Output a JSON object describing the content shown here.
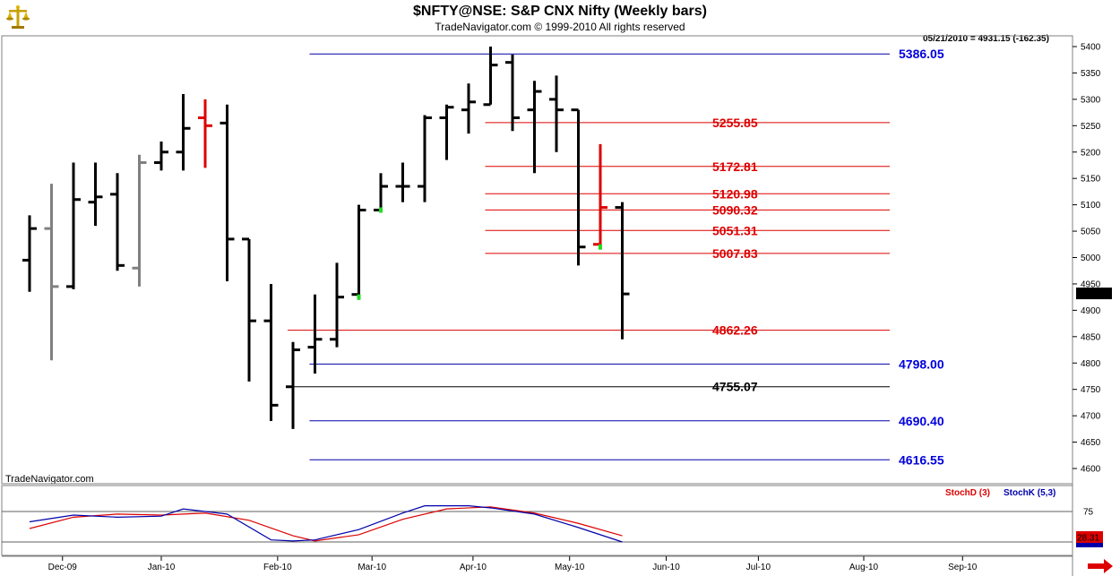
{
  "header": {
    "title": "$NFTY@NSE:  S&P CNX Nifty  (Weekly bars)",
    "subtitle": "TradeNavigator.com © 1999-2010 All rights reserved",
    "readout": "05/21/2010 = 4931.15 (-162.35)",
    "watermark": "TradeNavigator.com",
    "logo_icon": "gold-scales-logo-icon"
  },
  "chart_data": [
    {
      "type": "ohlc-bar",
      "ylim": [
        4580,
        5420
      ],
      "y_ticks": [
        4600,
        4650,
        4700,
        4750,
        4800,
        4850,
        4900,
        4950,
        5000,
        5050,
        5100,
        5150,
        5200,
        5250,
        5300,
        5350,
        5400
      ],
      "x_labels": [
        {
          "label": "Dec-09",
          "week": 1.5
        },
        {
          "label": "Jan-10",
          "week": 6
        },
        {
          "label": "Feb-10",
          "week": 11.3
        },
        {
          "label": "Mar-10",
          "week": 15.6
        },
        {
          "label": "Apr-10",
          "week": 20.2
        },
        {
          "label": "May-10",
          "week": 24.6
        },
        {
          "label": "Jun-10",
          "week": 29
        },
        {
          "label": "Jul-10",
          "week": 33.2
        },
        {
          "label": "Aug-10",
          "week": 38
        },
        {
          "label": "Sep-10",
          "week": 42.5
        }
      ],
      "last_price": "4931.15",
      "last_price_color": "#000000",
      "bars": [
        {
          "week": 0,
          "o": 4995,
          "h": 5080,
          "l": 4935,
          "c": 5055,
          "color": "#000000"
        },
        {
          "week": 1,
          "o": 5055,
          "h": 5140,
          "l": 4805,
          "c": 4945,
          "color": "#808080"
        },
        {
          "week": 2,
          "o": 4945,
          "h": 5180,
          "l": 4940,
          "c": 5110,
          "color": "#000000"
        },
        {
          "week": 3,
          "o": 5105,
          "h": 5180,
          "l": 5060,
          "c": 5115,
          "color": "#000000"
        },
        {
          "week": 4,
          "o": 5120,
          "h": 5160,
          "l": 4975,
          "c": 4985,
          "color": "#000000"
        },
        {
          "week": 5,
          "o": 4980,
          "h": 5195,
          "l": 4945,
          "c": 5180,
          "color": "#808080"
        },
        {
          "week": 6,
          "o": 5180,
          "h": 5220,
          "l": 5165,
          "c": 5200,
          "color": "#000000"
        },
        {
          "week": 7,
          "o": 5200,
          "h": 5310,
          "l": 5165,
          "c": 5245,
          "color": "#000000"
        },
        {
          "week": 8,
          "o": 5265,
          "h": 5300,
          "l": 5170,
          "c": 5250,
          "color": "#dd0000"
        },
        {
          "week": 9,
          "o": 5255,
          "h": 5290,
          "l": 4955,
          "c": 5035,
          "color": "#000000"
        },
        {
          "week": 10,
          "o": 5035,
          "h": 5035,
          "l": 4765,
          "c": 4880,
          "color": "#000000"
        },
        {
          "week": 11,
          "o": 4880,
          "h": 4950,
          "l": 4690,
          "c": 4720,
          "color": "#000000"
        },
        {
          "week": 12,
          "o": 4755,
          "h": 4840,
          "l": 4675,
          "c": 4825,
          "color": "#000000"
        },
        {
          "week": 13,
          "o": 4830,
          "h": 4930,
          "l": 4780,
          "c": 4845,
          "color": "#000000"
        },
        {
          "week": 14,
          "o": 4845,
          "h": 4990,
          "l": 4830,
          "c": 4925,
          "color": "#000000"
        },
        {
          "week": 15,
          "o": 4930,
          "h": 5100,
          "l": 4920,
          "c": 5090,
          "color": "#000000"
        },
        {
          "week": 16,
          "o": 5090,
          "h": 5160,
          "l": 5090,
          "c": 5135,
          "color": "#000000"
        },
        {
          "week": 17,
          "o": 5135,
          "h": 5180,
          "l": 5105,
          "c": 5135,
          "color": "#000000"
        },
        {
          "week": 18,
          "o": 5135,
          "h": 5270,
          "l": 5105,
          "c": 5265,
          "color": "#000000"
        },
        {
          "week": 19,
          "o": 5265,
          "h": 5290,
          "l": 5185,
          "c": 5285,
          "color": "#000000"
        },
        {
          "week": 20,
          "o": 5280,
          "h": 5330,
          "l": 5235,
          "c": 5295,
          "color": "#000000"
        },
        {
          "week": 21,
          "o": 5290,
          "h": 5400,
          "l": 5290,
          "c": 5365,
          "color": "#000000"
        },
        {
          "week": 22,
          "o": 5370,
          "h": 5385,
          "l": 5240,
          "c": 5265,
          "color": "#000000"
        },
        {
          "week": 23,
          "o": 5280,
          "h": 5335,
          "l": 5160,
          "c": 5315,
          "color": "#000000"
        },
        {
          "week": 24,
          "o": 5300,
          "h": 5345,
          "l": 5200,
          "c": 5280,
          "color": "#000000"
        },
        {
          "week": 25,
          "o": 5280,
          "h": 5280,
          "l": 4985,
          "c": 5020,
          "color": "#000000"
        },
        {
          "week": 26,
          "o": 5025,
          "h": 5215,
          "l": 5020,
          "c": 5095,
          "color": "#dd0000"
        },
        {
          "week": 27,
          "o": 5095,
          "h": 5105,
          "l": 4845,
          "c": 4931,
          "color": "#000000"
        }
      ],
      "green_marks": [
        {
          "week": 15,
          "y": 4925
        },
        {
          "week": 16,
          "y": 5090
        },
        {
          "week": 26,
          "y": 5020
        }
      ],
      "levels": [
        {
          "value": 5386.05,
          "label": "5386.05",
          "color": "#0000aa",
          "label_color": "#0000dd",
          "from_week": 13
        },
        {
          "value": 5255.85,
          "label": "5255.85",
          "color": "#dd0000",
          "label_color": "#dd0000",
          "from_week": 21
        },
        {
          "value": 5172.81,
          "label": "5172.81",
          "color": "#dd0000",
          "label_color": "#dd0000",
          "from_week": 21
        },
        {
          "value": 5120.98,
          "label": "5120.98",
          "color": "#dd0000",
          "label_color": "#dd0000",
          "from_week": 21
        },
        {
          "value": 5090.32,
          "label": "5090.32",
          "color": "#dd0000",
          "label_color": "#dd0000",
          "from_week": 21
        },
        {
          "value": 5051.31,
          "label": "5051.31",
          "color": "#dd0000",
          "label_color": "#dd0000",
          "from_week": 21
        },
        {
          "value": 5007.83,
          "label": "5007.83",
          "color": "#dd0000",
          "label_color": "#dd0000",
          "from_week": 21
        },
        {
          "value": 4862.26,
          "label": "4862.26",
          "color": "#dd0000",
          "label_color": "#dd0000",
          "from_week": 12
        },
        {
          "value": 4798.0,
          "label": "4798.00",
          "color": "#0000aa",
          "label_color": "#0000dd",
          "from_week": 13
        },
        {
          "value": 4755.07,
          "label": "4755.07",
          "color": "#000000",
          "label_color": "#000000",
          "from_week": 12
        },
        {
          "value": 4690.4,
          "label": "4690.40",
          "color": "#0000aa",
          "label_color": "#0000dd",
          "from_week": 13
        },
        {
          "value": 4616.55,
          "label": "4616.55",
          "color": "#0000aa",
          "label_color": "#0000dd",
          "from_week": 13
        }
      ]
    },
    {
      "type": "line",
      "ylim": [
        0,
        100
      ],
      "y_tick_label": "75",
      "y_tick_value": 75,
      "last_value": "28.31",
      "legend": [
        {
          "name": "StochD (3)",
          "color": "#dd0000"
        },
        {
          "name": "StochK (5,3)",
          "color": "#0000aa"
        }
      ],
      "series": [
        {
          "name": "StochD (3)",
          "color": "#dd0000",
          "x": [
            0,
            2,
            4,
            6,
            8,
            10,
            12,
            13,
            15,
            17,
            19,
            21,
            23,
            25,
            27
          ],
          "values": [
            42,
            64,
            70,
            68,
            72,
            58,
            28,
            18,
            30,
            60,
            80,
            84,
            72,
            52,
            28
          ]
        },
        {
          "name": "StochK (5,3)",
          "color": "#0000aa",
          "x": [
            0,
            2,
            4,
            6,
            7,
            9,
            11,
            12,
            13,
            15,
            17,
            18,
            20,
            21,
            23,
            25,
            27
          ],
          "values": [
            55,
            68,
            64,
            66,
            80,
            70,
            20,
            18,
            20,
            40,
            72,
            86,
            86,
            82,
            70,
            44,
            16
          ]
        }
      ]
    }
  ]
}
